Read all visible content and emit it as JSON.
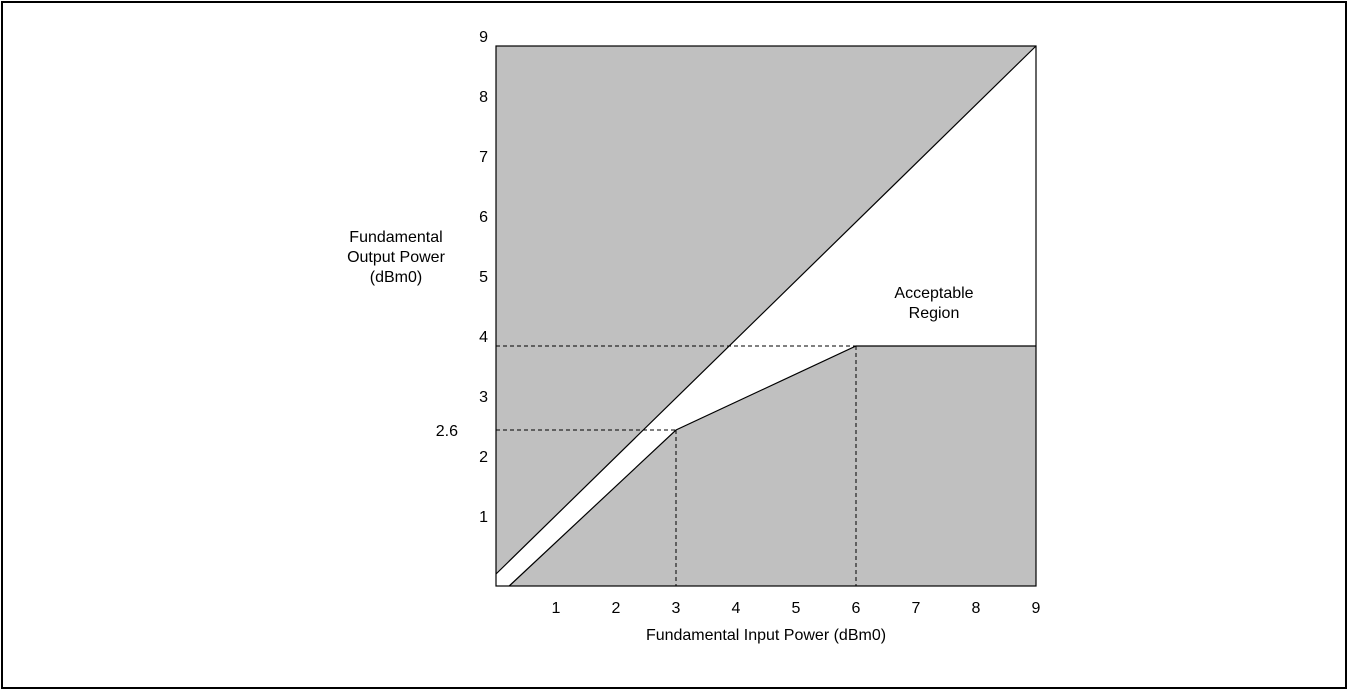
{
  "chart_data": {
    "type": "area",
    "xlabel": "Fundamental Input Power (dBm0)",
    "ylabel_lines": [
      "Fundamental",
      "Output Power",
      "(dBm0)"
    ],
    "xlim": [
      0,
      9
    ],
    "ylim": [
      0,
      9
    ],
    "x_ticks": [
      "1",
      "2",
      "3",
      "4",
      "5",
      "6",
      "7",
      "8",
      "9"
    ],
    "y_ticks": [
      "1",
      "2",
      "3",
      "4",
      "5",
      "6",
      "7",
      "8",
      "9"
    ],
    "extra_y_tick": "2.6",
    "upper_limit_line": {
      "x": [
        0,
        9
      ],
      "y": [
        0.2,
        9
      ]
    },
    "lower_limit_line": {
      "x": [
        0.22,
        3,
        6,
        9
      ],
      "y": [
        0,
        2.6,
        4,
        4
      ]
    },
    "reference_lines": [
      {
        "from": [
          0,
          2.6
        ],
        "to": [
          3,
          2.6
        ]
      },
      {
        "from": [
          3,
          2.6
        ],
        "to": [
          3,
          0
        ]
      },
      {
        "from": [
          0,
          4
        ],
        "to": [
          6,
          4
        ]
      },
      {
        "from": [
          6,
          4
        ],
        "to": [
          6,
          0
        ]
      }
    ],
    "region_label_lines": [
      "Acceptable",
      "Region"
    ],
    "region_label_at": [
      7.3,
      4.8
    ],
    "colors": {
      "shade": "#c0c0c0",
      "acceptable": "#ffffff",
      "line": "#000000"
    }
  }
}
